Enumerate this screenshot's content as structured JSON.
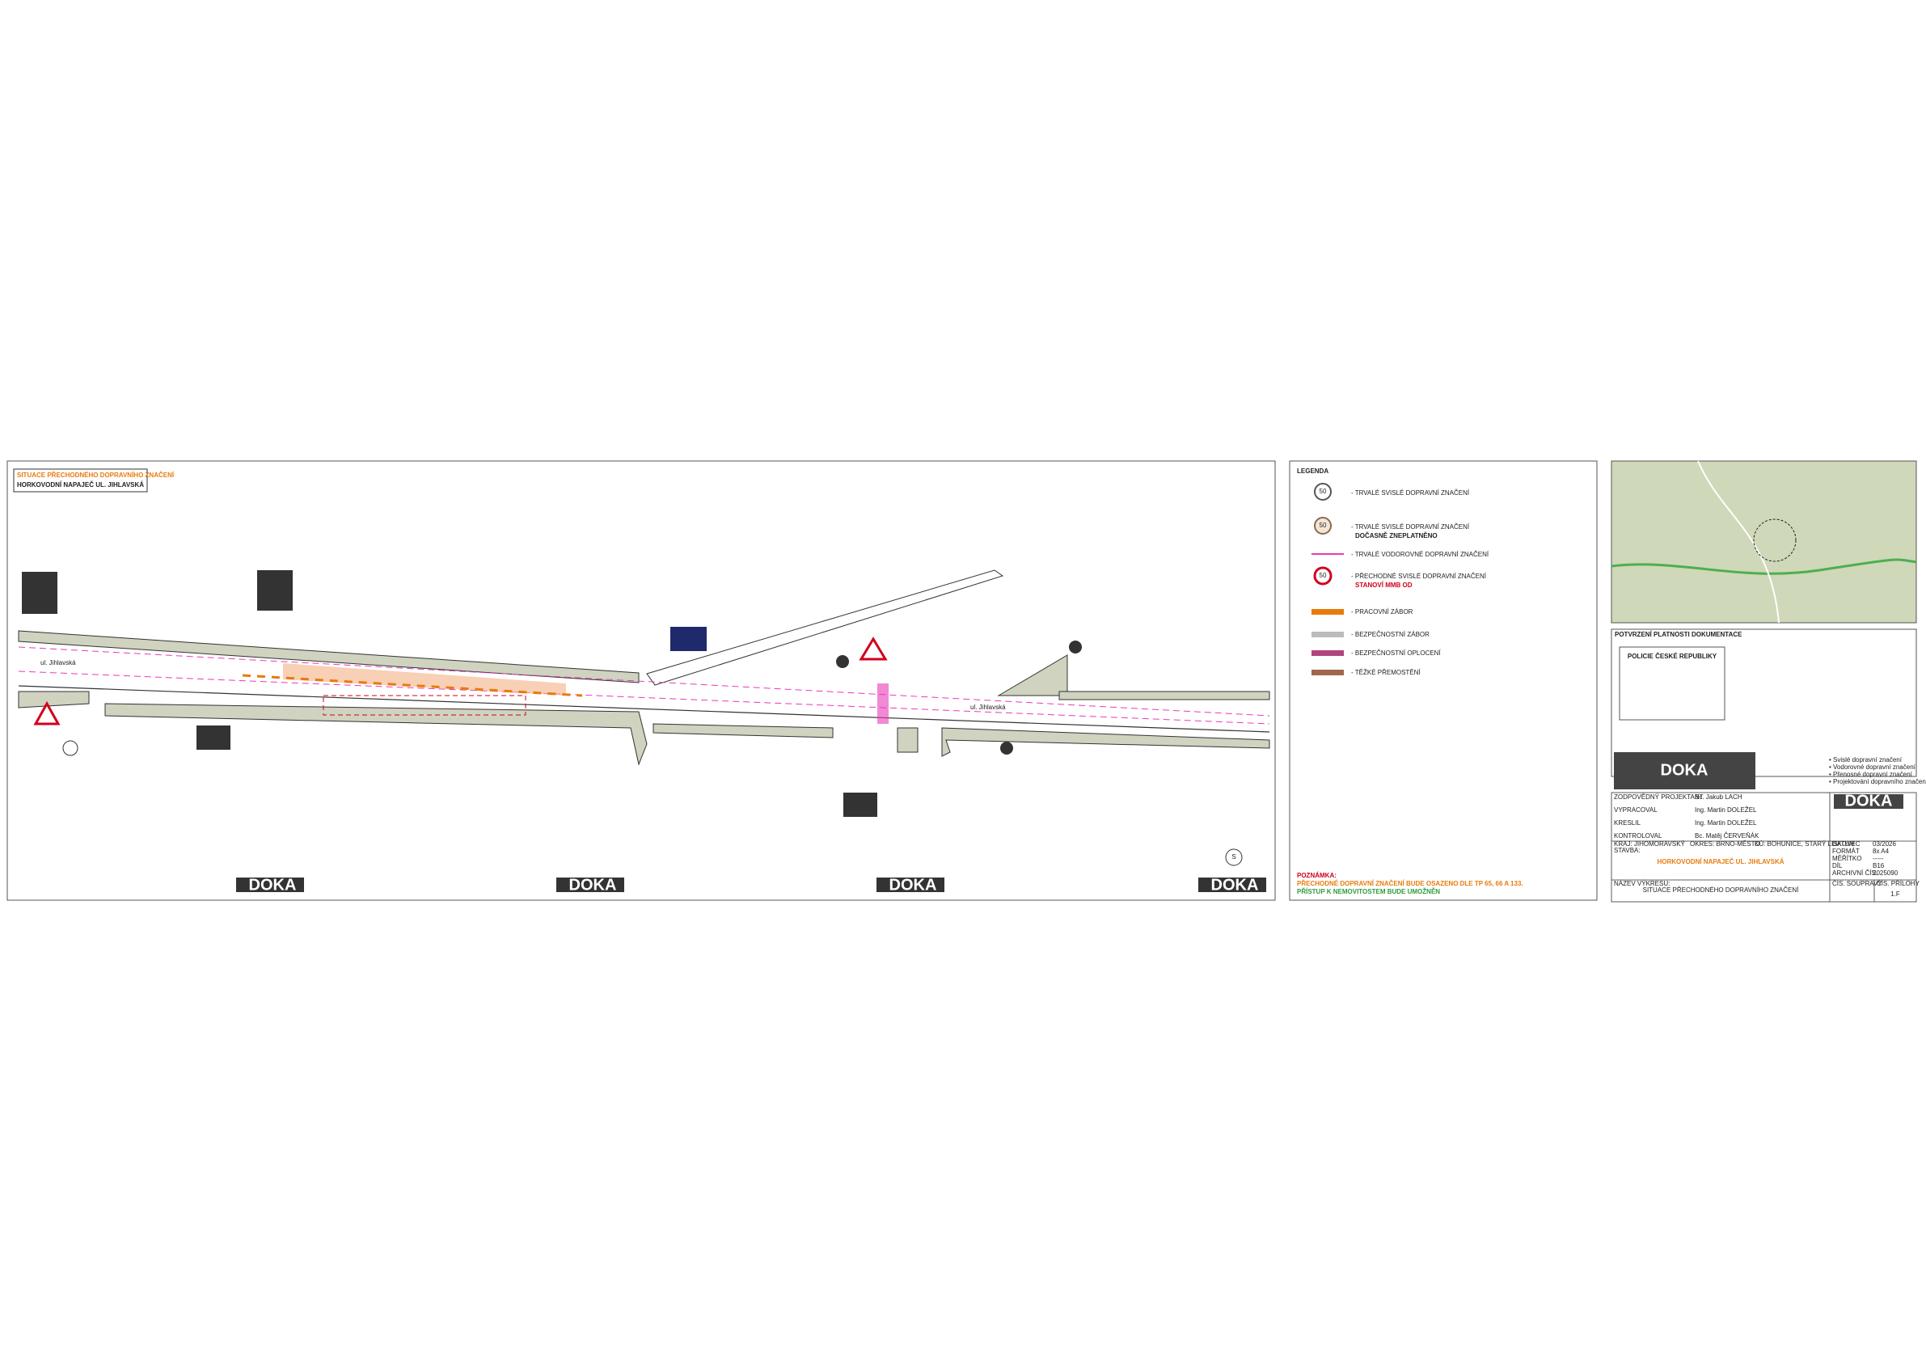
{
  "drawing": {
    "title": "SITUACE PŘECHODNÉHO DOPRAVNÍHO ZNAČENÍ",
    "subtitle": "HORKOVODNÍ NAPAJEČ UL. JIHLAVSKÁ",
    "street": "ul. Jihlavská",
    "street_labels": [
      "ul. Jihlavská",
      "ul. Jihlavská"
    ],
    "north": "S"
  },
  "logo": "DOKA",
  "legend": {
    "title": "LEGENDA",
    "items": [
      {
        "label": "- TRVALÉ SVISLÉ DOPRAVNÍ ZNAČENÍ"
      },
      {
        "label": "- TRVALÉ SVISLÉ DOPRAVNÍ ZNAČENÍ",
        "note": "DOČASNĚ ZNEPLATNĚNO"
      },
      {
        "label": "- TRVALÉ VODOROVNÉ DOPRAVNÍ ZNAČENÍ"
      },
      {
        "label": "- PŘECHODNÉ SVISLÉ DOPRAVNÍ ZNAČENÍ",
        "note": "STANOVÍ MMB OD"
      },
      {
        "label": "- PRACOVNÍ ZÁBOR"
      },
      {
        "label": "- BEZPEČNOSTNÍ ZÁBOR"
      },
      {
        "label": "- BEZPEČNOSTNÍ OPLOCENÍ"
      },
      {
        "label": "- TĚŽKÉ PŘEMOSTĚNÍ"
      }
    ],
    "sign_value": "50",
    "note_title": "POZNÁMKA:",
    "note_1": "PŘECHODNÉ DOPRAVNÍ ZNAČENÍ BUDE OSAZENO DLE TP 65, 66 A 133.",
    "note_2": "PŘÍSTUP K NEMOVITOSTEM BUDE UMOŽNĚN"
  },
  "title_block": {
    "validation": "POTVRZENÍ PLATNOSTI DOKUMENTACE",
    "police": "POLICIE ČESKÉ REPUBLIKY",
    "people": [
      [
        "ZODPOVĚDNÝ PROJEKTANT",
        "Bc. Jakub LACH"
      ],
      [
        "VYPRACOVAL",
        "Ing. Martin DOLEŽEL"
      ],
      [
        "KRESLIL",
        "Ing. Martin DOLEŽEL"
      ],
      [
        "KONTROLOVAL",
        "Bc. Matěj ČERVEŇÁK"
      ]
    ],
    "region": "KRAJ: JIHOMORAVSKÝ",
    "district": "OKRES: BRNO-MĚSTO",
    "cadastre": "KÚ: BOHUNICE, STARÝ LISKOVEC",
    "project_label": "STAVBA:",
    "project": "HORKOVODNÍ NAPAJEČ UL. JIHLAVSKÁ",
    "drawing_label": "NÁZEV VÝKRESU:",
    "drawing": "SITUACE PŘECHODNÉHO DOPRAVNÍHO ZNAČENÍ",
    "fields": [
      [
        "DATUM",
        "03/2026"
      ],
      [
        "FORMÁT",
        "8x A4"
      ],
      [
        "MĚŘÍTKO",
        "-----"
      ],
      [
        "DÍL",
        "B16"
      ],
      [
        "ARCHIVNÍ ČÍS.",
        "2025090"
      ]
    ],
    "set_label": "ČÍS. SOUPRAVY",
    "annex_label": "ČÍS. PŘÍLOHY",
    "annex": "1.F",
    "services": [
      "• Svislé dopravní značení",
      "• Vodorovné dopravní značení",
      "• Přenosné dopravní značení",
      "• Projektování dopravního značení"
    ]
  }
}
